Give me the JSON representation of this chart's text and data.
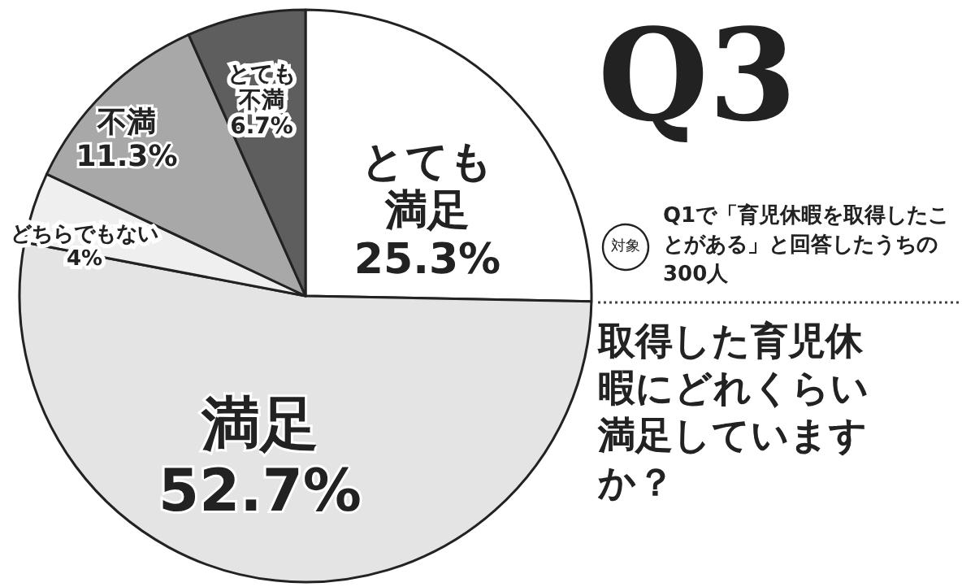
{
  "chart_data": {
    "type": "pie",
    "title": "Q3",
    "subtitle": "取得した育児休暇にどれくらい満足していますか？",
    "annotations": [
      "対象",
      "Q1で「育児休暇を取得したことがある」と回答したうちの300人"
    ],
    "categories": [
      "とても満足",
      "満足",
      "どちらでもない",
      "不満",
      "とても不満"
    ],
    "values": [
      25.3,
      52.7,
      4,
      11.3,
      6.7
    ],
    "value_labels": [
      "25.3%",
      "52.7%",
      "4%",
      "11.3%",
      "6.7%"
    ],
    "colors": [
      "#ffffff",
      "#e4e4e4",
      "#efefef",
      "#a8a8a8",
      "#5e5e5e"
    ],
    "legend": false
  }
}
